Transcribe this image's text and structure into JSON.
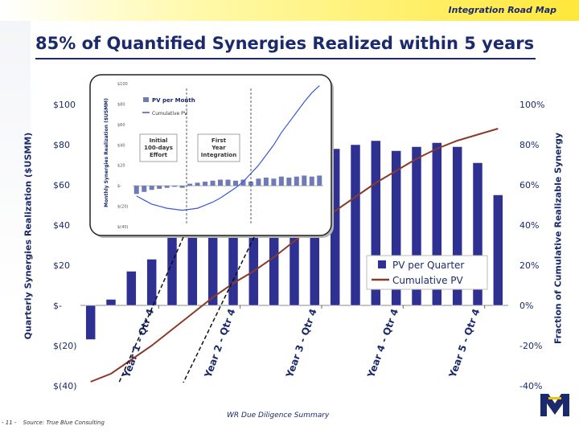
{
  "header": {
    "label": "Integration Road Map"
  },
  "title": "85% of Quantified Synergies Realized within 5 years",
  "footer": {
    "center": "WR Due Diligence Summary",
    "page_number": "- 11 -",
    "source": "Source: True Blue Consulting"
  },
  "colors": {
    "navy": "#1b2a6b",
    "bar": "#2e3192",
    "curve": "#8b3a2a",
    "inset_line": "#3a57d8",
    "inset_bar": "#6f7ab8"
  },
  "chart_data": [
    {
      "type": "bar",
      "title": "",
      "ylabel": "Quarterly Synergies Realization ($USMM)",
      "y2label": "Fraction of Cumulative Realizable Synergy",
      "ylim": [
        -40,
        100
      ],
      "y2lim": [
        -40,
        100
      ],
      "yticks": [
        100,
        80,
        60,
        40,
        20,
        0,
        -20,
        -40
      ],
      "ytick_labels": [
        "$100",
        "$80",
        "$60",
        "$40",
        "$20",
        "$-",
        "$(20)",
        "$(40)"
      ],
      "y2tick_labels": [
        "100%",
        "80%",
        "60%",
        "40%",
        "20%",
        "0%",
        "-20%",
        "-40%"
      ],
      "xtick_labels": [
        "Year 1 - Qtr 4",
        "Year 2 - Qtr 4",
        "Year 3 - Qtr 4",
        "Year 4 - Qtr 4",
        "Year 5 - Qtr 4"
      ],
      "xtick_after_bars": [
        4,
        8,
        12,
        16,
        20
      ],
      "series": [
        {
          "name": "PV per Quarter",
          "kind": "bar",
          "values": [
            -17,
            3,
            17,
            23,
            40,
            53,
            67,
            71,
            74,
            76,
            79,
            82,
            78,
            80,
            82,
            77,
            79,
            81,
            79,
            71,
            55
          ]
        },
        {
          "name": "Cumulative PV",
          "kind": "line",
          "values": [
            -38,
            -34,
            -27,
            -20,
            -12,
            -4,
            4,
            11,
            17,
            24,
            32,
            40,
            47,
            54,
            61,
            67,
            73,
            78,
            82,
            85,
            88
          ]
        }
      ],
      "legend": "center-right"
    },
    {
      "type": "bar",
      "ylabel": "Monthly Synergies Realization ($USMM)",
      "ylim": [
        -40,
        100
      ],
      "yticks": [
        100,
        80,
        60,
        40,
        20,
        0,
        -20,
        -40
      ],
      "ytick_labels": [
        "$100",
        "$80",
        "$60",
        "$40",
        "$20",
        "$-",
        "$(20)",
        "$(40)"
      ],
      "annotations": [
        "Initial 100-days Effort",
        "First Year Integration"
      ],
      "series": [
        {
          "name": "PV per Month",
          "kind": "bar",
          "values": [
            -8,
            -6,
            -4,
            -3,
            -2,
            -1,
            -2,
            2,
            3,
            4,
            5,
            6,
            6,
            5,
            6,
            4,
            7,
            8,
            7,
            9,
            8,
            9,
            10,
            9,
            10
          ]
        },
        {
          "name": "Cumulative PV",
          "kind": "line",
          "values": [
            -10,
            -14,
            -18,
            -20,
            -22,
            -23,
            -24,
            -23,
            -22,
            -19,
            -16,
            -12,
            -7,
            -2,
            4,
            12,
            20,
            30,
            40,
            52,
            62,
            72,
            82,
            91,
            98
          ]
        }
      ],
      "legend": "top-left"
    }
  ]
}
